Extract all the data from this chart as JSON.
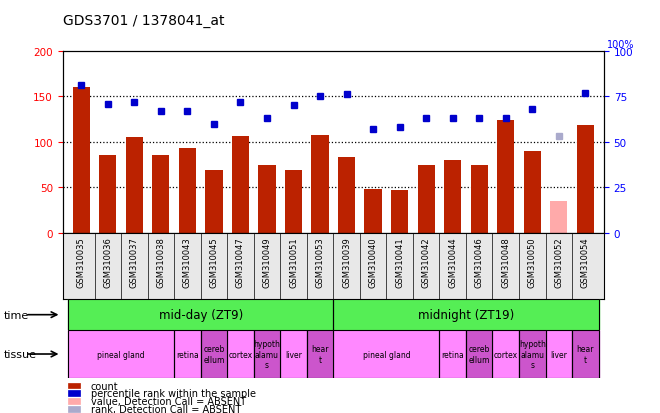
{
  "title": "GDS3701 / 1378041_at",
  "samples": [
    "GSM310035",
    "GSM310036",
    "GSM310037",
    "GSM310038",
    "GSM310043",
    "GSM310045",
    "GSM310047",
    "GSM310049",
    "GSM310051",
    "GSM310053",
    "GSM310039",
    "GSM310040",
    "GSM310041",
    "GSM310042",
    "GSM310044",
    "GSM310046",
    "GSM310048",
    "GSM310050",
    "GSM310052",
    "GSM310054"
  ],
  "counts": [
    160,
    86,
    105,
    85,
    93,
    69,
    106,
    75,
    69,
    108,
    83,
    48,
    47,
    75,
    80,
    75,
    124,
    90,
    35,
    118
  ],
  "ranks": [
    81,
    71,
    72,
    67,
    67,
    60,
    72,
    63,
    70,
    75,
    76,
    57,
    58,
    63,
    63,
    63,
    63,
    68,
    53,
    77
  ],
  "absent_idx": 18,
  "ylim_left": [
    0,
    200
  ],
  "ylim_right": [
    0,
    100
  ],
  "bar_color": "#bb2200",
  "dot_color": "#0000cc",
  "absent_bar_color": "#ffaaaa",
  "absent_dot_color": "#aaaacc",
  "time_groups": [
    {
      "label": "mid-day (ZT9)",
      "start": 0,
      "end": 9,
      "color": "#55ee55"
    },
    {
      "label": "midnight (ZT19)",
      "start": 10,
      "end": 19,
      "color": "#55ee55"
    }
  ],
  "tissue_groups": [
    {
      "label": "pineal gland",
      "start": 0,
      "end": 3,
      "color": "#ff88ff"
    },
    {
      "label": "retina",
      "start": 4,
      "end": 4,
      "color": "#ff88ff"
    },
    {
      "label": "cereb\nellum",
      "start": 5,
      "end": 5,
      "color": "#cc55cc"
    },
    {
      "label": "cortex",
      "start": 6,
      "end": 6,
      "color": "#ff88ff"
    },
    {
      "label": "hypoth\nalamu\ns",
      "start": 7,
      "end": 7,
      "color": "#cc55cc"
    },
    {
      "label": "liver",
      "start": 8,
      "end": 8,
      "color": "#ff88ff"
    },
    {
      "label": "hear\nt",
      "start": 9,
      "end": 9,
      "color": "#cc55cc"
    },
    {
      "label": "pineal gland",
      "start": 10,
      "end": 13,
      "color": "#ff88ff"
    },
    {
      "label": "retina",
      "start": 14,
      "end": 14,
      "color": "#ff88ff"
    },
    {
      "label": "cereb\nellum",
      "start": 15,
      "end": 15,
      "color": "#cc55cc"
    },
    {
      "label": "cortex",
      "start": 16,
      "end": 16,
      "color": "#ff88ff"
    },
    {
      "label": "hypoth\nalamu\ns",
      "start": 17,
      "end": 17,
      "color": "#cc55cc"
    },
    {
      "label": "liver",
      "start": 18,
      "end": 18,
      "color": "#ff88ff"
    },
    {
      "label": "hear\nt",
      "start": 19,
      "end": 19,
      "color": "#cc55cc"
    }
  ],
  "legend_items": [
    {
      "label": "count",
      "color": "#bb2200"
    },
    {
      "label": "percentile rank within the sample",
      "color": "#0000cc"
    },
    {
      "label": "value, Detection Call = ABSENT",
      "color": "#ffaaaa"
    },
    {
      "label": "rank, Detection Call = ABSENT",
      "color": "#aaaacc"
    }
  ]
}
